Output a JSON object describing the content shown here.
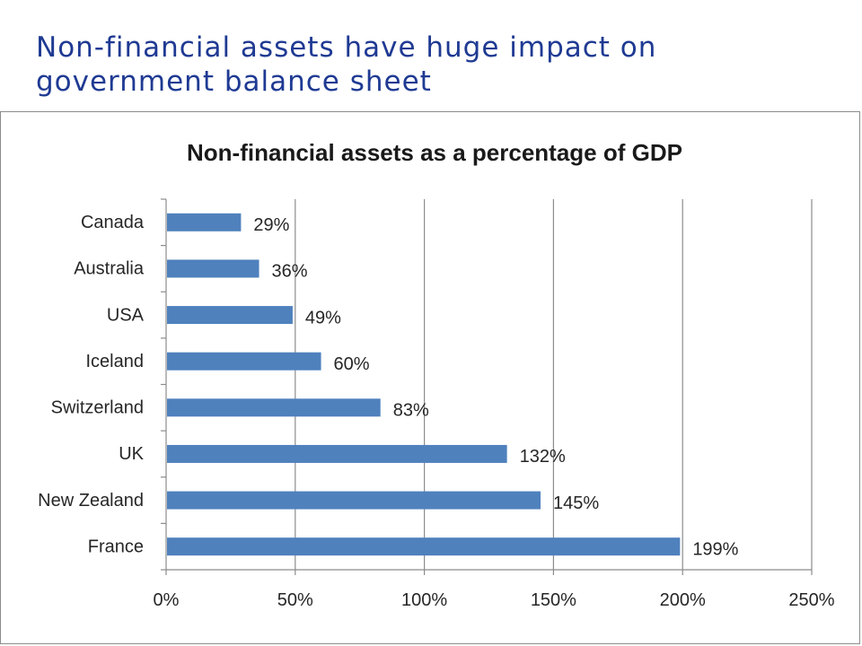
{
  "slide": {
    "title_line1": "Non-financial assets have huge impact on",
    "title_line2": "government balance sheet",
    "title_color": "#1f3a93"
  },
  "chart_data": {
    "type": "bar",
    "orientation": "horizontal",
    "title": "Non-financial assets as a percentage of GDP",
    "categories": [
      "Canada",
      "Australia",
      "USA",
      "Iceland",
      "Switzerland",
      "UK",
      "New Zealand",
      "France"
    ],
    "values": [
      29,
      36,
      49,
      60,
      83,
      132,
      145,
      199
    ],
    "value_labels": [
      "29%",
      "36%",
      "49%",
      "60%",
      "83%",
      "132%",
      "145%",
      "199%"
    ],
    "xlim": [
      0,
      250
    ],
    "xticks": [
      0,
      50,
      100,
      150,
      200,
      250
    ],
    "xtick_labels": [
      "0%",
      "50%",
      "100%",
      "150%",
      "200%",
      "250%"
    ],
    "xlabel": "",
    "ylabel": "",
    "grid": "vertical",
    "legend": "none",
    "bar_color": "#4f81bd",
    "grid_color": "#8c8c8c"
  }
}
